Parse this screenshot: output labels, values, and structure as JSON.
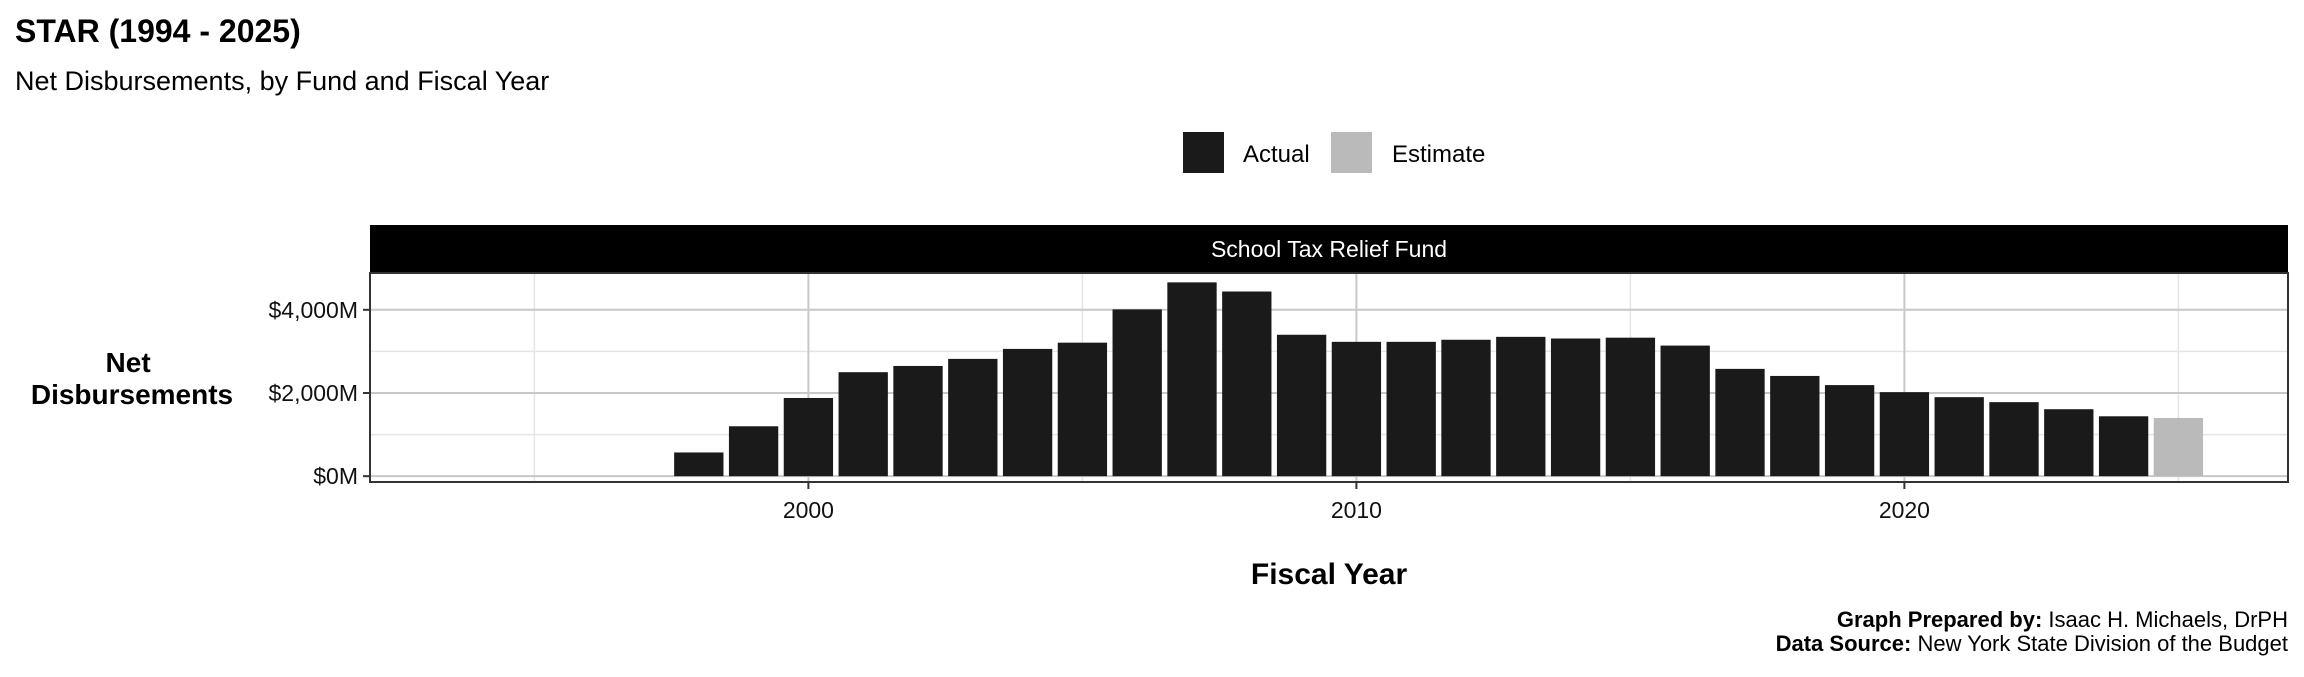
{
  "chart_data": {
    "type": "bar",
    "title": "STAR (1994 - 2025)",
    "subtitle": "Net Disbursements, by Fund and Fiscal Year",
    "facet_label": "School Tax Relief Fund",
    "xlabel": "Fiscal Year",
    "ylabel": "Net Disbursements",
    "xlim": [
      1992,
      2027
    ],
    "ylim": [
      -140,
      4885
    ],
    "x_ticks": [
      2000,
      2010,
      2020
    ],
    "x_tick_labels": [
      "2000",
      "2010",
      "2020"
    ],
    "y_ticks": [
      0,
      2000,
      4000
    ],
    "y_tick_labels": [
      "$0M",
      "$2,000M",
      "$4,000M"
    ],
    "grid": true,
    "legend_position": "top",
    "legend": [
      {
        "name": "Actual",
        "color": "#1a1a1a"
      },
      {
        "name": "Estimate",
        "color": "#bababa"
      }
    ],
    "units": "millions of dollars",
    "data": [
      {
        "year": 1998,
        "value": 570,
        "type": "Actual"
      },
      {
        "year": 1999,
        "value": 1200,
        "type": "Actual"
      },
      {
        "year": 2000,
        "value": 1880,
        "type": "Actual"
      },
      {
        "year": 2001,
        "value": 2500,
        "type": "Actual"
      },
      {
        "year": 2002,
        "value": 2650,
        "type": "Actual"
      },
      {
        "year": 2003,
        "value": 2820,
        "type": "Actual"
      },
      {
        "year": 2004,
        "value": 3060,
        "type": "Actual"
      },
      {
        "year": 2005,
        "value": 3210,
        "type": "Actual"
      },
      {
        "year": 2006,
        "value": 4010,
        "type": "Actual"
      },
      {
        "year": 2007,
        "value": 4660,
        "type": "Actual"
      },
      {
        "year": 2008,
        "value": 4440,
        "type": "Actual"
      },
      {
        "year": 2009,
        "value": 3400,
        "type": "Actual"
      },
      {
        "year": 2010,
        "value": 3230,
        "type": "Actual"
      },
      {
        "year": 2011,
        "value": 3230,
        "type": "Actual"
      },
      {
        "year": 2012,
        "value": 3280,
        "type": "Actual"
      },
      {
        "year": 2013,
        "value": 3350,
        "type": "Actual"
      },
      {
        "year": 2014,
        "value": 3310,
        "type": "Actual"
      },
      {
        "year": 2015,
        "value": 3330,
        "type": "Actual"
      },
      {
        "year": 2016,
        "value": 3140,
        "type": "Actual"
      },
      {
        "year": 2017,
        "value": 2580,
        "type": "Actual"
      },
      {
        "year": 2018,
        "value": 2410,
        "type": "Actual"
      },
      {
        "year": 2019,
        "value": 2190,
        "type": "Actual"
      },
      {
        "year": 2020,
        "value": 2020,
        "type": "Actual"
      },
      {
        "year": 2021,
        "value": 1900,
        "type": "Actual"
      },
      {
        "year": 2022,
        "value": 1780,
        "type": "Actual"
      },
      {
        "year": 2023,
        "value": 1610,
        "type": "Actual"
      },
      {
        "year": 2024,
        "value": 1440,
        "type": "Actual"
      },
      {
        "year": 2025,
        "value": 1400,
        "type": "Estimate"
      }
    ]
  },
  "caption": {
    "prepared_label": "Graph Prepared by:",
    "prepared_value": " Isaac H. Michaels, DrPH",
    "source_label": "Data Source:",
    "source_value": " New York State Division of the Budget"
  }
}
